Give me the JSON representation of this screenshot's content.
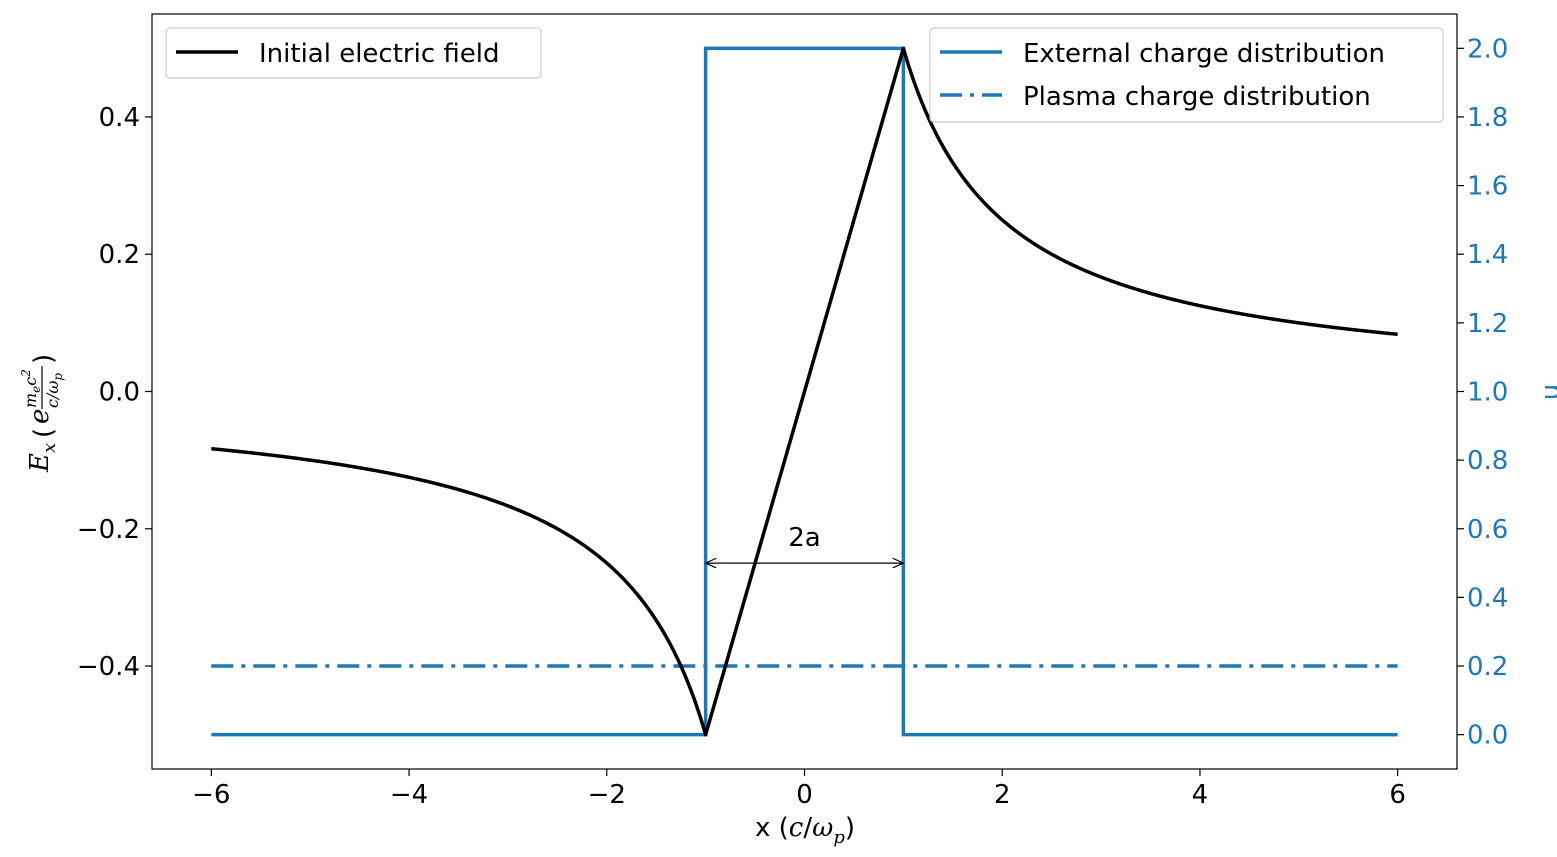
{
  "chart_data": {
    "type": "line",
    "title": "",
    "xlabel": "x (c/ω_p)",
    "ylabel": "E_x (e (m_e c²)/(c/ω_p))",
    "y2label": "n",
    "xlim": [
      -6.6,
      6.6
    ],
    "ylim": [
      -0.55,
      0.55
    ],
    "y2lim": [
      -0.1,
      2.1
    ],
    "x_ticks": [
      -6,
      -4,
      -2,
      0,
      2,
      4,
      6
    ],
    "x_tick_labels": [
      "−6",
      "−4",
      "−2",
      "0",
      "2",
      "4",
      "6"
    ],
    "y_ticks": [
      -0.4,
      -0.2,
      0.0,
      0.2,
      0.4
    ],
    "y_tick_labels": [
      "−0.4",
      "−0.2",
      "0.0",
      "0.2",
      "0.4"
    ],
    "y2_ticks": [
      0.0,
      0.2,
      0.4,
      0.6,
      0.8,
      1.0,
      1.2,
      1.4,
      1.6,
      1.8,
      2.0
    ],
    "y2_tick_labels": [
      "0.0",
      "0.2",
      "0.4",
      "0.6",
      "0.8",
      "1.0",
      "1.2",
      "1.4",
      "1.6",
      "1.8",
      "2.0"
    ],
    "grid": false,
    "series": [
      {
        "name": "Initial electric field",
        "axis": "left",
        "color": "#000000",
        "style": "solid",
        "function": "E(x) = x/2 for |x| ≤ 1; E(x) = 1/(2x) for |x| > 1",
        "x": [
          -6,
          -5,
          -4,
          -3,
          -2,
          -1.5,
          -1.2,
          -1,
          0,
          1,
          1.2,
          1.5,
          2,
          3,
          4,
          5,
          6
        ],
        "values": [
          -0.0833,
          -0.1,
          -0.125,
          -0.1667,
          -0.25,
          -0.3333,
          -0.4167,
          -0.5,
          0,
          0.5,
          0.4167,
          0.3333,
          0.25,
          0.1667,
          0.125,
          0.1,
          0.0833
        ]
      },
      {
        "name": "External charge distribution",
        "axis": "right",
        "color": "#1f77b4",
        "style": "solid",
        "x": [
          -6,
          -1,
          -1,
          1,
          1,
          6
        ],
        "values": [
          0,
          0,
          2,
          2,
          0,
          0
        ]
      },
      {
        "name": "Plasma charge distribution",
        "axis": "right",
        "color": "#1f77b4",
        "style": "dashdot",
        "x": [
          -6,
          6
        ],
        "values": [
          0.2,
          0.2
        ]
      }
    ],
    "legend_left": {
      "placement": "upper-left",
      "entries": [
        "Initial electric field"
      ]
    },
    "legend_right": {
      "placement": "upper-right",
      "entries": [
        "External charge distribution",
        "Plasma charge distribution"
      ]
    },
    "annotations": [
      {
        "text": "2a",
        "type": "double-arrow",
        "x_from": -1,
        "x_to": 1,
        "y": -0.25
      }
    ]
  }
}
